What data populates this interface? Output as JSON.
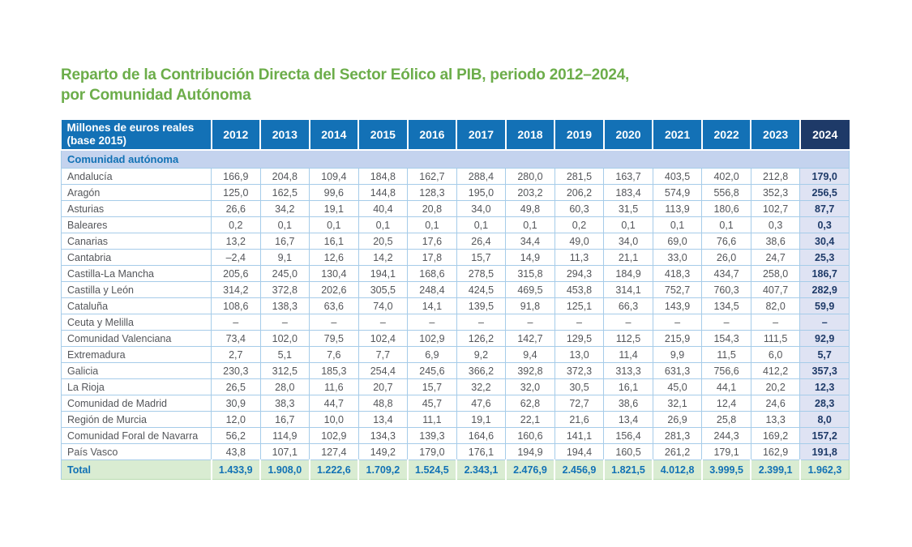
{
  "title": {
    "line1": "Reparto de la Contribución Directa del Sector Eólico al PIB, periodo 2012–2024,",
    "line2": "por Comunidad Autónoma"
  },
  "chart_data": {
    "type": "table",
    "unit_label": "Millones de euros reales (base 2015)",
    "group_label": "Comunidad autónoma",
    "years": [
      "2012",
      "2013",
      "2014",
      "2015",
      "2016",
      "2017",
      "2018",
      "2019",
      "2020",
      "2021",
      "2022",
      "2023",
      "2024"
    ],
    "rows": [
      {
        "name": "Andalucía",
        "values": [
          "166,9",
          "204,8",
          "109,4",
          "184,8",
          "162,7",
          "288,4",
          "280,0",
          "281,5",
          "163,7",
          "403,5",
          "402,0",
          "212,8",
          "179,0"
        ]
      },
      {
        "name": "Aragón",
        "values": [
          "125,0",
          "162,5",
          "99,6",
          "144,8",
          "128,3",
          "195,0",
          "203,2",
          "206,2",
          "183,4",
          "574,9",
          "556,8",
          "352,3",
          "256,5"
        ]
      },
      {
        "name": "Asturias",
        "values": [
          "26,6",
          "34,2",
          "19,1",
          "40,4",
          "20,8",
          "34,0",
          "49,8",
          "60,3",
          "31,5",
          "113,9",
          "180,6",
          "102,7",
          "87,7"
        ]
      },
      {
        "name": "Baleares",
        "values": [
          "0,2",
          "0,1",
          "0,1",
          "0,1",
          "0,1",
          "0,1",
          "0,1",
          "0,2",
          "0,1",
          "0,1",
          "0,1",
          "0,3",
          "0,3"
        ]
      },
      {
        "name": "Canarias",
        "values": [
          "13,2",
          "16,7",
          "16,1",
          "20,5",
          "17,6",
          "26,4",
          "34,4",
          "49,0",
          "34,0",
          "69,0",
          "76,6",
          "38,6",
          "30,4"
        ]
      },
      {
        "name": "Cantabria",
        "values": [
          "–2,4",
          "9,1",
          "12,6",
          "14,2",
          "17,8",
          "15,7",
          "14,9",
          "11,3",
          "21,1",
          "33,0",
          "26,0",
          "24,7",
          "25,3"
        ]
      },
      {
        "name": "Castilla-La Mancha",
        "values": [
          "205,6",
          "245,0",
          "130,4",
          "194,1",
          "168,6",
          "278,5",
          "315,8",
          "294,3",
          "184,9",
          "418,3",
          "434,7",
          "258,0",
          "186,7"
        ]
      },
      {
        "name": "Castilla y León",
        "values": [
          "314,2",
          "372,8",
          "202,6",
          "305,5",
          "248,4",
          "424,5",
          "469,5",
          "453,8",
          "314,1",
          "752,7",
          "760,3",
          "407,7",
          "282,9"
        ]
      },
      {
        "name": "Cataluña",
        "values": [
          "108,6",
          "138,3",
          "63,6",
          "74,0",
          "14,1",
          "139,5",
          "91,8",
          "125,1",
          "66,3",
          "143,9",
          "134,5",
          "82,0",
          "59,9"
        ]
      },
      {
        "name": "Ceuta y Melilla",
        "values": [
          "–",
          "–",
          "–",
          "–",
          "–",
          "–",
          "–",
          "–",
          "–",
          "–",
          "–",
          "–",
          "–"
        ]
      },
      {
        "name": "Comunidad Valenciana",
        "values": [
          "73,4",
          "102,0",
          "79,5",
          "102,4",
          "102,9",
          "126,2",
          "142,7",
          "129,5",
          "112,5",
          "215,9",
          "154,3",
          "111,5",
          "92,9"
        ]
      },
      {
        "name": "Extremadura",
        "values": [
          "2,7",
          "5,1",
          "7,6",
          "7,7",
          "6,9",
          "9,2",
          "9,4",
          "13,0",
          "11,4",
          "9,9",
          "11,5",
          "6,0",
          "5,7"
        ]
      },
      {
        "name": "Galicia",
        "values": [
          "230,3",
          "312,5",
          "185,3",
          "254,4",
          "245,6",
          "366,2",
          "392,8",
          "372,3",
          "313,3",
          "631,3",
          "756,6",
          "412,2",
          "357,3"
        ]
      },
      {
        "name": "La Rioja",
        "values": [
          "26,5",
          "28,0",
          "11,6",
          "20,7",
          "15,7",
          "32,2",
          "32,0",
          "30,5",
          "16,1",
          "45,0",
          "44,1",
          "20,2",
          "12,3"
        ]
      },
      {
        "name": "Comunidad de Madrid",
        "values": [
          "30,9",
          "38,3",
          "44,7",
          "48,8",
          "45,7",
          "47,6",
          "62,8",
          "72,7",
          "38,6",
          "32,1",
          "12,4",
          "24,6",
          "28,3"
        ]
      },
      {
        "name": "Región de Murcia",
        "values": [
          "12,0",
          "16,7",
          "10,0",
          "13,4",
          "11,1",
          "19,1",
          "22,1",
          "21,6",
          "13,4",
          "26,9",
          "25,8",
          "13,3",
          "8,0"
        ]
      },
      {
        "name": "Comunidad Foral de Navarra",
        "values": [
          "56,2",
          "114,9",
          "102,9",
          "134,3",
          "139,3",
          "164,6",
          "160,6",
          "141,1",
          "156,4",
          "281,3",
          "244,3",
          "169,2",
          "157,2"
        ]
      },
      {
        "name": "País Vasco",
        "values": [
          "43,8",
          "107,1",
          "127,4",
          "149,2",
          "179,0",
          "176,1",
          "194,9",
          "194,4",
          "160,5",
          "261,2",
          "179,1",
          "162,9",
          "191,8"
        ]
      }
    ],
    "total": {
      "label": "Total",
      "values": [
        "1.433,9",
        "1.908,0",
        "1.222,6",
        "1.709,2",
        "1.524,5",
        "2.343,1",
        "2.476,9",
        "2.456,9",
        "1.821,5",
        "4.012,8",
        "3.999,5",
        "2.399,1",
        "1.962,3"
      ]
    },
    "colors": {
      "title_green": "#6cad4a",
      "header_blue": "#1371b6",
      "header_2024_navy": "#1e3a68",
      "group_row_bg": "#c4d3ee",
      "accent_blue_text": "#1272b5",
      "col_2024_bg": "#dfe3f3",
      "total_row_bg": "#d9ecd2",
      "grid_border": "#a6cce9",
      "body_text": "#54565a"
    }
  }
}
